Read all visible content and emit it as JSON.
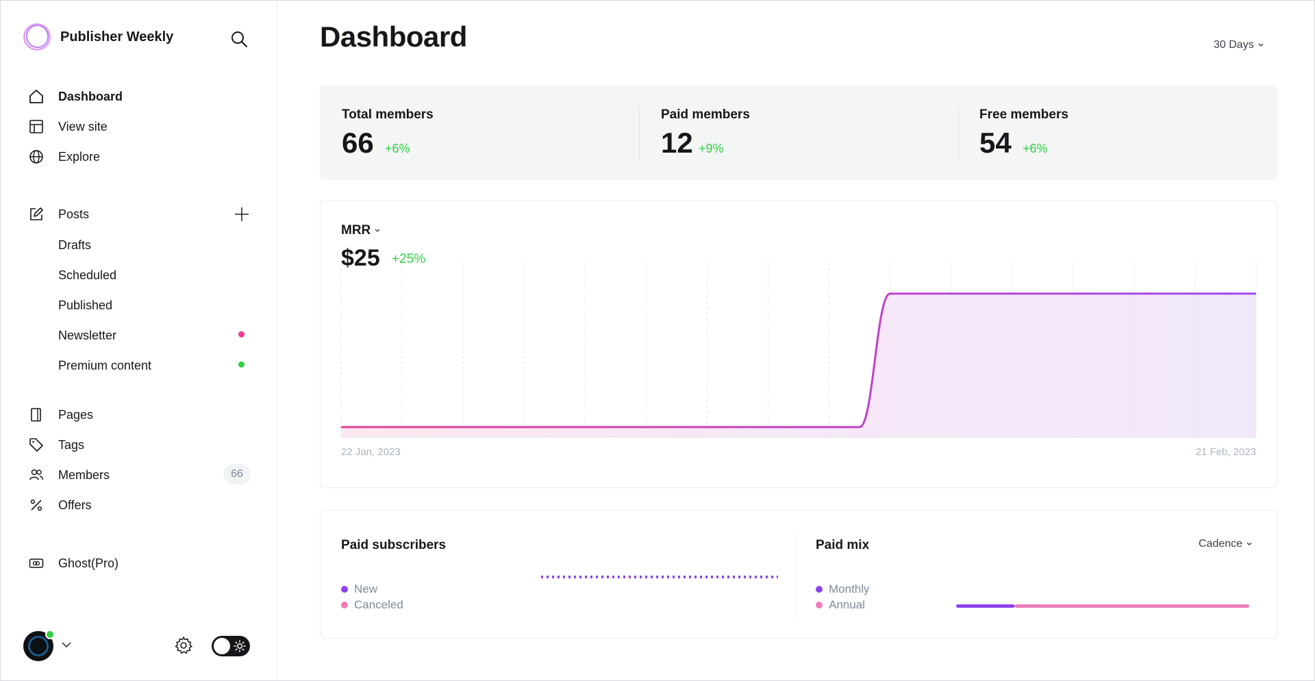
{
  "brand": {
    "name": "Publisher Weekly"
  },
  "nav": {
    "dashboard": "Dashboard",
    "view_site": "View site",
    "explore": "Explore",
    "posts": "Posts",
    "drafts": "Drafts",
    "scheduled": "Scheduled",
    "published": "Published",
    "newsletter": "Newsletter",
    "premium": "Premium content",
    "pages": "Pages",
    "tags": "Tags",
    "members": "Members",
    "members_count": "66",
    "offers": "Offers",
    "ghost_pro": "Ghost(Pro)"
  },
  "colors": {
    "newsletter_dot": "#f0398f",
    "premium_dot": "#30cf43",
    "accent_purple": "#8e42ee",
    "accent_pink": "#ee7cb9",
    "positive": "#30cf43"
  },
  "header": {
    "title": "Dashboard",
    "range": "30 Days"
  },
  "stats": [
    {
      "label": "Total members",
      "value": "66",
      "delta": "+6%"
    },
    {
      "label": "Paid members",
      "value": "12",
      "delta": "+9%"
    },
    {
      "label": "Free members",
      "value": "54",
      "delta": "+6%"
    }
  ],
  "mrr": {
    "title": "MRR",
    "value": "$25",
    "delta": "+25%",
    "x_start": "22 Jan, 2023",
    "x_end": "21 Feb, 2023"
  },
  "chart_data": {
    "type": "area",
    "title": "MRR",
    "x_labels": [
      "22 Jan, 2023",
      "21 Feb, 2023"
    ],
    "x": [
      0,
      1,
      2,
      3,
      4,
      5,
      6,
      7,
      8,
      9,
      10,
      11,
      12,
      13,
      14,
      15,
      16,
      17,
      18,
      19,
      20,
      21,
      22,
      23,
      24,
      25,
      26,
      27,
      28,
      29,
      30
    ],
    "values": [
      0,
      0,
      0,
      0,
      0,
      0,
      0,
      0,
      0,
      0,
      0,
      0,
      0,
      0,
      0,
      0,
      0,
      0,
      25,
      25,
      25,
      25,
      25,
      25,
      25,
      25,
      25,
      25,
      25,
      25,
      25
    ],
    "ylim": [
      0,
      30
    ],
    "grid": "vertical dashed"
  },
  "paid_subscribers": {
    "title": "Paid subscribers",
    "legend": [
      "New",
      "Canceled"
    ]
  },
  "paid_mix": {
    "title": "Paid mix",
    "cadence": "Cadence",
    "legend": [
      "Monthly",
      "Annual"
    ],
    "monthly_share": 0.2
  }
}
